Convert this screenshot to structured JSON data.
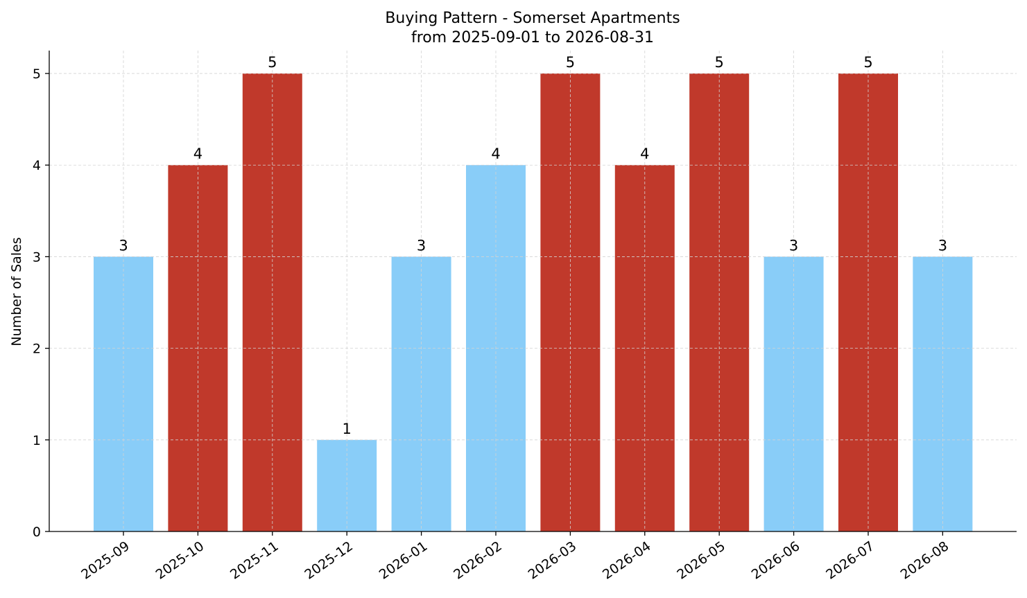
{
  "chart_data": {
    "type": "bar",
    "title": "Buying Pattern - Somerset Apartments",
    "subtitle": "from 2025-09-01 to 2026-08-31",
    "xlabel": "",
    "ylabel": "Number of Sales",
    "categories": [
      "2025-09",
      "2025-10",
      "2025-11",
      "2025-12",
      "2026-01",
      "2026-02",
      "2026-03",
      "2026-04",
      "2026-05",
      "2026-06",
      "2026-07",
      "2026-08"
    ],
    "values": [
      3,
      4,
      5,
      1,
      3,
      4,
      5,
      4,
      5,
      3,
      5,
      3
    ],
    "bar_colors": [
      "#89cdf8",
      "#c0392b",
      "#c0392b",
      "#89cdf8",
      "#89cdf8",
      "#89cdf8",
      "#c0392b",
      "#c0392b",
      "#c0392b",
      "#89cdf8",
      "#c0392b",
      "#89cdf8"
    ],
    "yticks": [
      0,
      1,
      2,
      3,
      4,
      5
    ],
    "ylim": [
      0,
      5.25
    ],
    "grid": true,
    "data_labels": true
  }
}
